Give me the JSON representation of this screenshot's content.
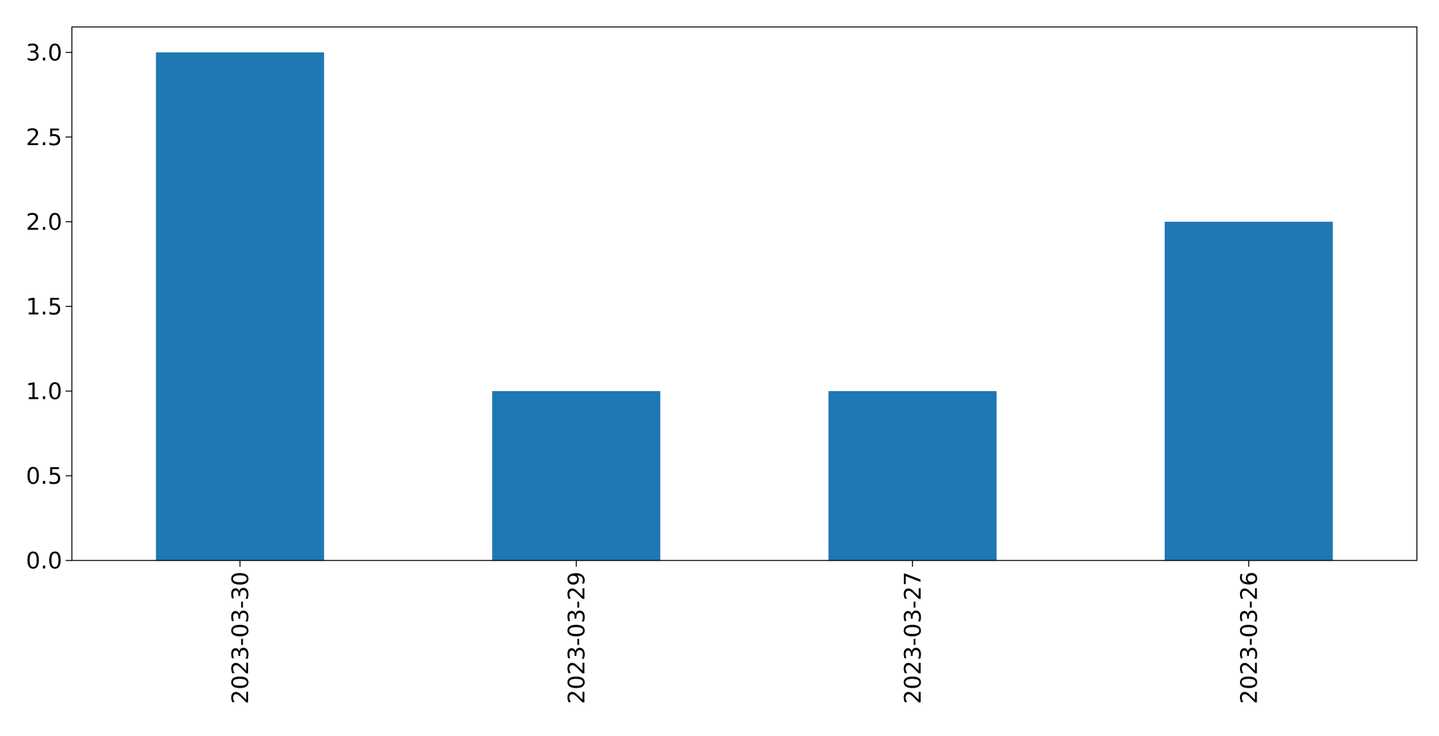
{
  "chart_data": {
    "type": "bar",
    "title": "",
    "xlabel": "",
    "ylabel": "",
    "categories": [
      "2023-03-30",
      "2023-03-29",
      "2023-03-27",
      "2023-03-26"
    ],
    "values": [
      3,
      1,
      1,
      2
    ],
    "ylim": [
      0,
      3.15
    ],
    "yticks": [
      "0.0",
      "0.5",
      "1.0",
      "1.5",
      "2.0",
      "2.5",
      "3.0"
    ],
    "bar_color": "#1f77b4",
    "grid": false,
    "legend": "none",
    "x_tick_rotation": "vertical"
  }
}
